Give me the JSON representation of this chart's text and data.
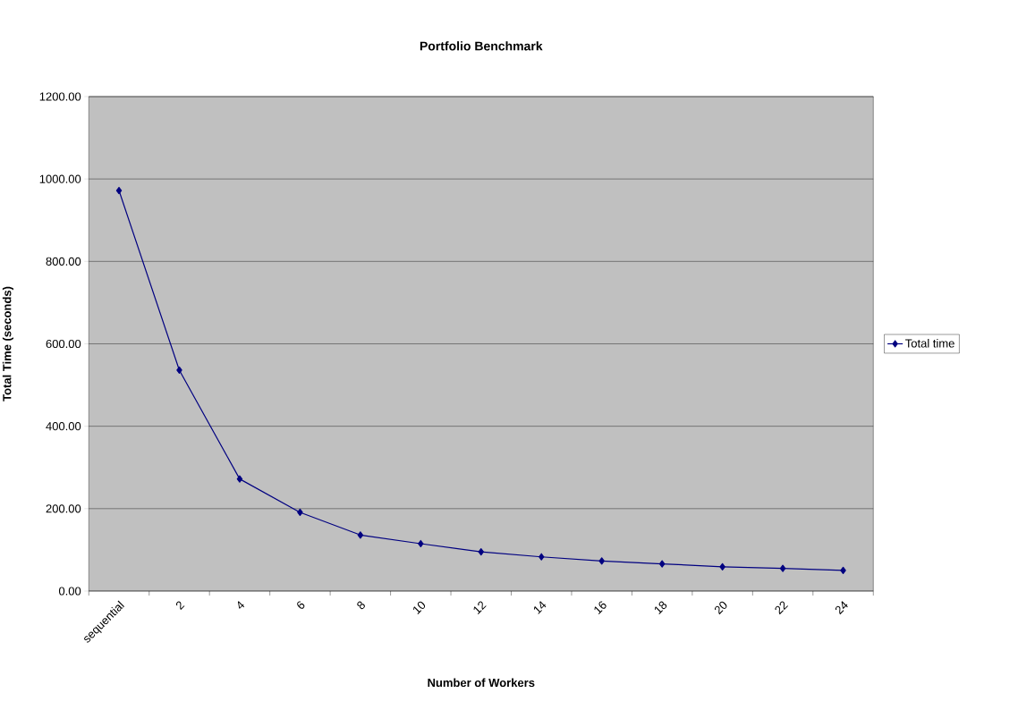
{
  "chart_data": {
    "type": "line",
    "title": "Portfolio Benchmark",
    "xlabel": "Number of Workers",
    "ylabel": "Total Time (seconds)",
    "categories": [
      "sequential",
      "2",
      "4",
      "6",
      "8",
      "10",
      "12",
      "14",
      "16",
      "18",
      "20",
      "22",
      "24"
    ],
    "series": [
      {
        "name": "Total time",
        "color": "#000080",
        "values": [
          972,
          536,
          272,
          191,
          136,
          115,
          95,
          83,
          73,
          66,
          59,
          55,
          50
        ]
      }
    ],
    "ylim": [
      0,
      1200
    ],
    "yticks": [
      {
        "value": 0,
        "label": "0.00"
      },
      {
        "value": 200,
        "label": "200.00"
      },
      {
        "value": 400,
        "label": "400.00"
      },
      {
        "value": 600,
        "label": "600.00"
      },
      {
        "value": 800,
        "label": "800.00"
      },
      {
        "value": 1000,
        "label": "1000.00"
      },
      {
        "value": 1200,
        "label": "1200.00"
      }
    ],
    "grid": "y",
    "legend": "right",
    "marker": "diamond",
    "line_style": "solid"
  }
}
